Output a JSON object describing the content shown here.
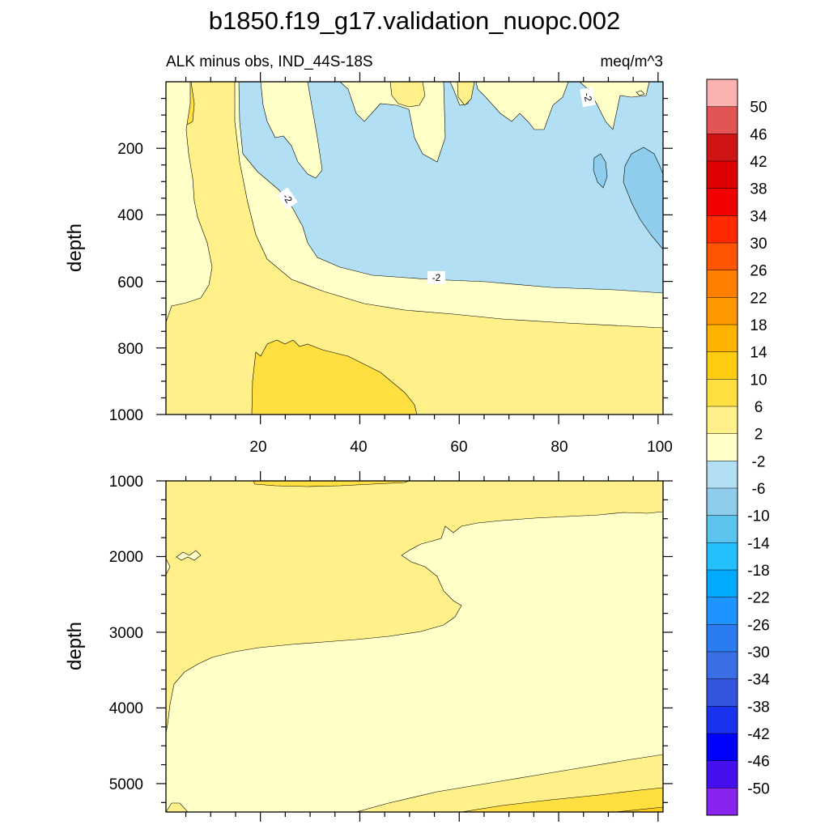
{
  "chart_data": {
    "type": "contour",
    "title": "b1850.f19_g17.validation_nuopc.002",
    "left_subtitle": "ALK minus obs, IND_44S-18S",
    "right_subtitle": "meq/m^3",
    "ylabel": "depth",
    "x_ticks": [
      "20",
      "40",
      "60",
      "80",
      "100"
    ],
    "x_range": [
      1,
      101
    ],
    "panels": [
      {
        "name": "upper",
        "ylim": [
          0,
          1000
        ],
        "y_ticks": [
          "200",
          "400",
          "600",
          "800",
          "1000"
        ],
        "contour_labels": [
          "-2",
          "-2",
          "-2"
        ]
      },
      {
        "name": "lower",
        "ylim": [
          1000,
          5375
        ],
        "y_ticks": [
          "1000",
          "2000",
          "3000",
          "4000",
          "5000"
        ]
      }
    ],
    "colorbar": {
      "labels": [
        "50",
        "46",
        "42",
        "38",
        "34",
        "30",
        "26",
        "22",
        "18",
        "14",
        "10",
        "6",
        "2",
        "-2",
        "-6",
        "-10",
        "-14",
        "-18",
        "-22",
        "-26",
        "-30",
        "-34",
        "-38",
        "-42",
        "-46",
        "-50"
      ],
      "colors": [
        "#fdb2b2",
        "#e35555",
        "#cf1414",
        "#dd0000",
        "#f20000",
        "#ff2a00",
        "#ff5500",
        "#ff7f00",
        "#ff9900",
        "#ffb200",
        "#ffcc14",
        "#ffe040",
        "#fff08a",
        "#ffffc8",
        "#b3dff5",
        "#8fcded",
        "#5bc4ef",
        "#23bfff",
        "#00aaff",
        "#1f93ff",
        "#2b7cf0",
        "#3a6fe8",
        "#3355dd",
        "#1a33ee",
        "#0000ff",
        "#4411ee",
        "#8822ee"
      ]
    }
  }
}
